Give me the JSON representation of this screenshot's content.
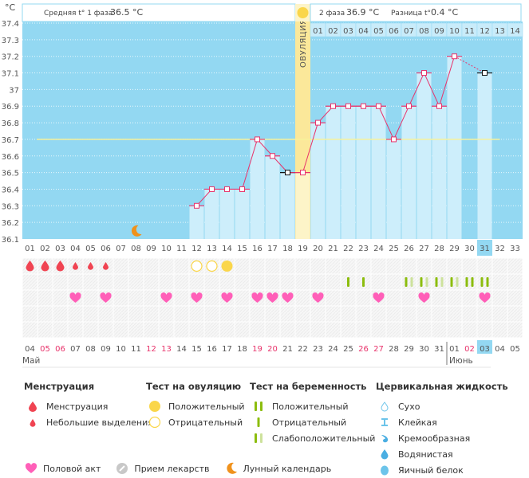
{
  "header": {
    "unit": "°C",
    "phase1_label": "Средняя t° 1 фаза",
    "phase1_value": "36.5 °C",
    "phase2_label": "2 фаза",
    "phase2_value": "36.9 °C",
    "diff_label": "Разница t°",
    "diff_value": "0.4 °C",
    "ovulation_label": "ОВУЛЯЦИЯ",
    "post_ovulation_days": [
      "01",
      "02",
      "03",
      "04",
      "05",
      "06",
      "07",
      "08",
      "09",
      "10",
      "11",
      "12",
      "13",
      "14"
    ]
  },
  "chart_data": {
    "type": "line",
    "title": "",
    "xlabel": "",
    "ylabel": "°C",
    "ylim": [
      36.1,
      37.4
    ],
    "yticks": [
      "36.1",
      "36.2",
      "36.3",
      "36.4",
      "36.5",
      "36.6",
      "36.7",
      "36.8",
      "36.9",
      "37",
      "37.1",
      "37.2",
      "37.3",
      "37.4"
    ],
    "x": [
      "01",
      "02",
      "03",
      "04",
      "05",
      "06",
      "07",
      "08",
      "09",
      "10",
      "11",
      "12",
      "13",
      "14",
      "15",
      "16",
      "17",
      "18",
      "19",
      "20",
      "21",
      "22",
      "23",
      "24",
      "25",
      "26",
      "27",
      "28",
      "29",
      "30",
      "31",
      "32",
      "33"
    ],
    "series": [
      {
        "name": "Базальная температура",
        "color": "#e8336b",
        "points": [
          {
            "day": 12,
            "value": 36.3
          },
          {
            "day": 13,
            "value": 36.4
          },
          {
            "day": 14,
            "value": 36.4
          },
          {
            "day": 15,
            "value": 36.4
          },
          {
            "day": 16,
            "value": 36.7
          },
          {
            "day": 17,
            "value": 36.6
          },
          {
            "day": 18,
            "value": 36.5,
            "excluded": true
          },
          {
            "day": 19,
            "value": 36.5
          },
          {
            "day": 20,
            "value": 36.8
          },
          {
            "day": 21,
            "value": 36.9
          },
          {
            "day": 22,
            "value": 36.9
          },
          {
            "day": 23,
            "value": 36.9
          },
          {
            "day": 24,
            "value": 36.9
          },
          {
            "day": 25,
            "value": 36.7
          },
          {
            "day": 26,
            "value": 36.9
          },
          {
            "day": 27,
            "value": 37.1
          },
          {
            "day": 28,
            "value": 36.9
          },
          {
            "day": 29,
            "value": 37.2
          },
          {
            "day": 31,
            "value": 37.1,
            "excluded": true
          }
        ]
      }
    ],
    "coverline": 36.7,
    "ovulation_day": 19,
    "current_day": 31,
    "moon_day": 8,
    "calendar_dates": [
      "04",
      "05",
      "06",
      "07",
      "08",
      "09",
      "10",
      "11",
      "12",
      "13",
      "14",
      "15",
      "16",
      "17",
      "18",
      "19",
      "20",
      "21",
      "22",
      "23",
      "24",
      "25",
      "26",
      "27",
      "28",
      "29",
      "30",
      "31",
      "01",
      "02",
      "03",
      "04",
      "05"
    ],
    "weekend_dates_idx": [
      1,
      2,
      8,
      9,
      15,
      16,
      22,
      23,
      29
    ],
    "months": [
      {
        "label": "Май",
        "start_idx": 0
      },
      {
        "label": "Июнь",
        "start_idx": 28
      }
    ],
    "menstruation": [
      {
        "day": 1,
        "type": "heavy"
      },
      {
        "day": 2,
        "type": "heavy"
      },
      {
        "day": 3,
        "type": "heavy"
      },
      {
        "day": 4,
        "type": "light"
      },
      {
        "day": 5,
        "type": "light"
      },
      {
        "day": 6,
        "type": "light"
      }
    ],
    "ovulation_tests": [
      {
        "day": 12,
        "result": "negative"
      },
      {
        "day": 13,
        "result": "negative"
      },
      {
        "day": 14,
        "result": "positive"
      }
    ],
    "pregnancy_tests": [
      {
        "day": 22,
        "result": "negative"
      },
      {
        "day": 23,
        "result": "negative"
      },
      {
        "day": 26,
        "result": "weak"
      },
      {
        "day": 27,
        "result": "weak"
      },
      {
        "day": 28,
        "result": "weak"
      },
      {
        "day": 29,
        "result": "weak"
      },
      {
        "day": 30,
        "result": "positive"
      },
      {
        "day": 31,
        "result": "positive"
      }
    ],
    "intercourse_days": [
      4,
      6,
      10,
      12,
      14,
      16,
      17,
      18,
      20,
      24,
      27,
      31
    ]
  },
  "colors": {
    "plot_bg": "#93d8f2",
    "bar": "#cdeefb",
    "line": "#e8336b",
    "ovulation": "#fbe89a",
    "coverline": "#f7f29a",
    "heart": "#ff5fb8",
    "drop": "#f04452",
    "ovu_test": "#fad64a",
    "preg_dark": "#8cbd0e",
    "preg_light": "#cde29c",
    "moon": "#f0921c",
    "weekend": "#e8336b",
    "current": "#93d8f2"
  },
  "legend": {
    "menstruation": {
      "title": "Менструация",
      "items": [
        "Менструация",
        "Небольшие выделения"
      ]
    },
    "ovulation_test": {
      "title": "Тест на овуляцию",
      "items": [
        "Положительный",
        "Отрицательный"
      ]
    },
    "pregnancy_test": {
      "title": "Тест на беременность",
      "items": [
        "Положительный",
        "Отрицательный",
        "Слабоположительный"
      ]
    },
    "cervical": {
      "title": "Цервикальная жидкость",
      "items": [
        "Сухо",
        "Клейкая",
        "Кремообразная",
        "Водянистая",
        "Яичный белок"
      ]
    },
    "bottom": [
      "Половой акт",
      "Прием лекарств",
      "Лунный календарь"
    ]
  }
}
